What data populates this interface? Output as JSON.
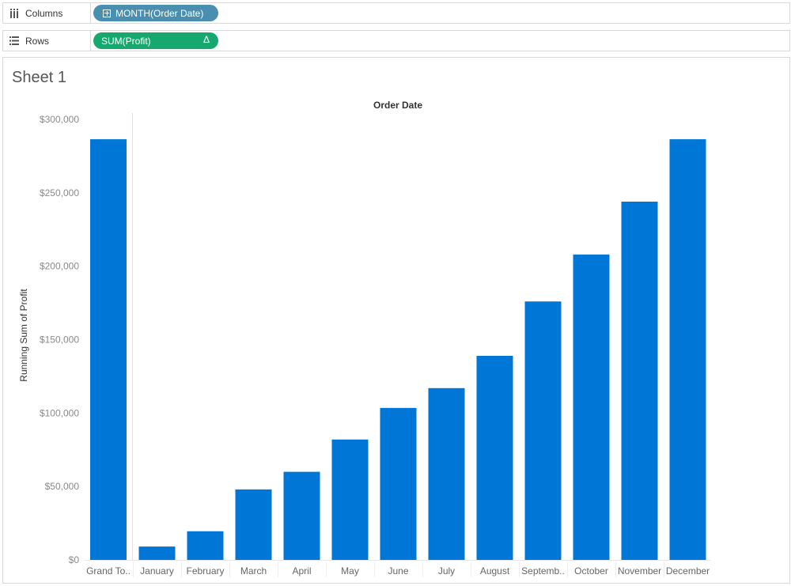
{
  "shelves": {
    "columns": {
      "label": "Columns",
      "icon": "columns-icon",
      "pill": "MONTH(Order Date)",
      "pill_color": "#4a8fb0"
    },
    "rows": {
      "label": "Rows",
      "icon": "rows-icon",
      "pill": "SUM(Profit)",
      "pill_delta": "Δ",
      "pill_color": "#17a870"
    }
  },
  "sheet": {
    "title": "Sheet 1"
  },
  "chart_data": {
    "type": "bar",
    "title": "",
    "header": "Order Date",
    "ylabel": "Running Sum of Profit",
    "xlabel": "",
    "ylim": [
      0,
      300000
    ],
    "yticks": [
      0,
      50000,
      100000,
      150000,
      200000,
      250000,
      300000
    ],
    "ytick_labels": [
      "$0",
      "$50,000",
      "$100,000",
      "$150,000",
      "$200,000",
      "$250,000",
      "$300,000"
    ],
    "bar_color": "#0077d6",
    "grand_total": {
      "label": "Grand To..",
      "value": 286500
    },
    "categories": [
      "January",
      "February",
      "March",
      "April",
      "May",
      "June",
      "July",
      "August",
      "Septemb..",
      "October",
      "November",
      "December"
    ],
    "values": [
      9100,
      19500,
      48000,
      60000,
      82000,
      103500,
      117000,
      139000,
      176000,
      208000,
      244000,
      286500
    ],
    "grid": false
  }
}
